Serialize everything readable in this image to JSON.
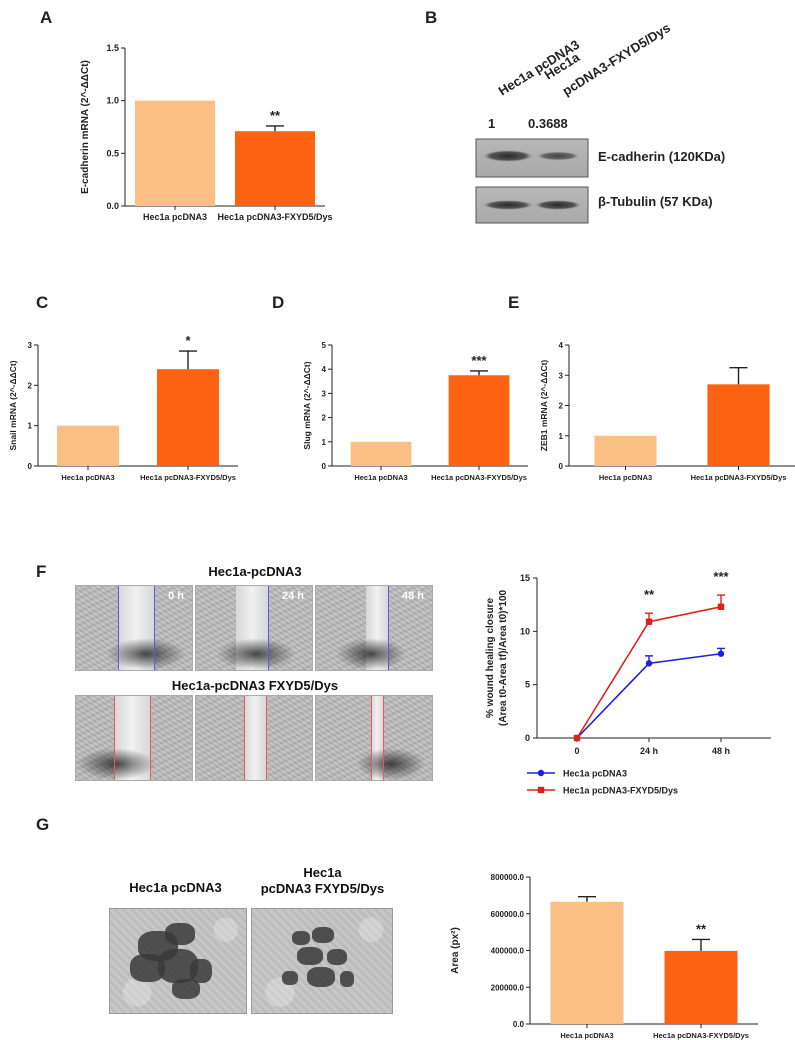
{
  "panels": {
    "A": {
      "letter": "A",
      "significance": "**",
      "chart_data": {
        "type": "bar",
        "categories": [
          "Hec1a pcDNA3",
          "Hec1a pcDNA3-FXYD5/Dys"
        ],
        "values": [
          1.0,
          0.71
        ],
        "errors": [
          0,
          0.05
        ],
        "ylabel": "E-cadherin mRNA (2^-ΔΔCt)",
        "ylim": [
          0,
          1.5
        ],
        "yticks": [
          "0.0",
          "0.5",
          "1.0",
          "1.5"
        ],
        "colors": [
          "#fbbf83",
          "#fd6112"
        ]
      }
    },
    "B": {
      "letter": "B",
      "lane_labels": [
        "Hec1a pcDNA3",
        "Hec1a",
        "pcDNA3-FXYD5/Dys"
      ],
      "quant": [
        "1",
        "0.3688"
      ],
      "bands": [
        "E-cadherin (120KDa)",
        "β-Tubulin (57 KDa)"
      ]
    },
    "C": {
      "letter": "C",
      "significance": "*",
      "chart_data": {
        "type": "bar",
        "categories": [
          "Hec1a pcDNA3",
          "Hec1a pcDNA3-FXYD5/Dys"
        ],
        "values": [
          1.0,
          2.4
        ],
        "errors": [
          0,
          0.45
        ],
        "ylabel": "Snail mRNA (2^-ΔΔCt)",
        "ylim": [
          0,
          3
        ],
        "yticks": [
          "0",
          "1",
          "2",
          "3"
        ],
        "colors": [
          "#fbbf83",
          "#fd6112"
        ]
      }
    },
    "D": {
      "letter": "D",
      "significance": "***",
      "chart_data": {
        "type": "bar",
        "categories": [
          "Hec1a pcDNA3",
          "Hec1a pcDNA3-FXYD5/Dys"
        ],
        "values": [
          1.0,
          3.75
        ],
        "errors": [
          0,
          0.18
        ],
        "ylabel": "Slug mRNA (2^-ΔΔCt)",
        "ylim": [
          0,
          5
        ],
        "yticks": [
          "0",
          "1",
          "2",
          "3",
          "4",
          "5"
        ],
        "colors": [
          "#fbbf83",
          "#fd6112"
        ]
      }
    },
    "E": {
      "letter": "E",
      "significance": "",
      "chart_data": {
        "type": "bar",
        "categories": [
          "Hec1a pcDNA3",
          "Hec1a pcDNA3-FXYD5/Dys"
        ],
        "values": [
          1.0,
          2.7
        ],
        "errors": [
          0,
          0.55
        ],
        "ylabel": "ZEB1 mRNA (2^-ΔΔCt)",
        "ylim": [
          0,
          4
        ],
        "yticks": [
          "0",
          "1",
          "2",
          "3",
          "4"
        ],
        "colors": [
          "#fbbf83",
          "#fd6112"
        ]
      }
    },
    "F": {
      "letter": "F",
      "images": {
        "row1_title": "Hec1a-pcDNA3",
        "row2_title": "Hec1a-pcDNA3 FXYD5/Dys",
        "timepoints": [
          "0 h",
          "24 h",
          "48 h"
        ]
      },
      "significance": [
        "**",
        "***"
      ],
      "chart_data": {
        "type": "line",
        "x": [
          "0",
          "24 h",
          "48 h"
        ],
        "series": [
          {
            "name": "Hec1a pcDNA3",
            "values": [
              0,
              7.0,
              7.9
            ],
            "errors": [
              0,
              0.7,
              0.5
            ],
            "color": "#1f1fe0"
          },
          {
            "name": "Hec1a pcDNA3-FXYD5/Dys",
            "values": [
              0,
              10.9,
              12.3
            ],
            "errors": [
              0,
              0.8,
              1.1
            ],
            "color": "#e01f1f"
          }
        ],
        "ylabel_line1": "% wound healing closure",
        "ylabel_line2": "(Area t0-Area tf)/Area t0)*100",
        "ylim": [
          0,
          15
        ],
        "yticks": [
          "0",
          "5",
          "10",
          "15"
        ],
        "legend_position": "bottom"
      }
    },
    "G": {
      "letter": "G",
      "image_titles": [
        "Hec1a pcDNA3",
        "Hec1a",
        "pcDNA3 FXYD5/Dys"
      ],
      "significance": "**",
      "chart_data": {
        "type": "bar",
        "categories": [
          "Hec1a pcDNA3",
          "Hec1a pcDNA3-FXYD5/Dys"
        ],
        "values": [
          665000,
          398000
        ],
        "errors": [
          28000,
          62000
        ],
        "ylabel": "Area (px²)",
        "ylim": [
          0,
          800000
        ],
        "yticks": [
          "0.0",
          "200000.0",
          "400000.0",
          "600000.0",
          "800000.0"
        ],
        "colors": [
          "#fbbf83",
          "#fd6112"
        ]
      }
    }
  }
}
